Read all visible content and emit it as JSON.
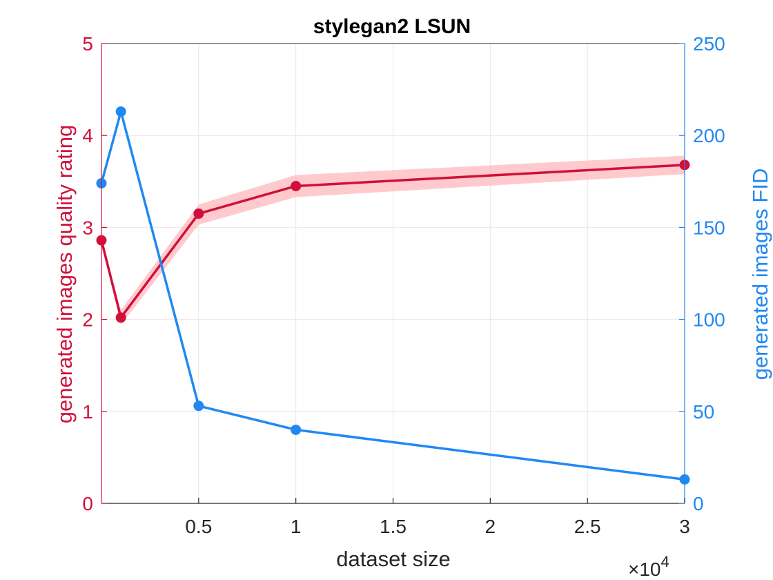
{
  "chart_data": {
    "type": "line",
    "title": "stylegan2 LSUN",
    "xlabel": "dataset size",
    "x_exponent_label": "×10",
    "x_exponent_power": "4",
    "xlim": [
      0,
      3
    ],
    "x_ticks": [
      0.5,
      1,
      1.5,
      2,
      2.5,
      3
    ],
    "x_tick_labels": [
      "0.5",
      "1",
      "1.5",
      "2",
      "2.5",
      "3"
    ],
    "left_axis": {
      "label": "generated images quality rating",
      "ylim": [
        0,
        5
      ],
      "ticks": [
        0,
        1,
        2,
        3,
        4,
        5
      ],
      "tick_labels": [
        "0",
        "1",
        "2",
        "3",
        "4",
        "5"
      ],
      "color": "#d0103a",
      "band_color": "#ffb3b8"
    },
    "right_axis": {
      "label": "generated images FID",
      "ylim": [
        0,
        250
      ],
      "ticks": [
        0,
        50,
        100,
        150,
        200,
        250
      ],
      "tick_labels": [
        "0",
        "50",
        "100",
        "150",
        "200",
        "250"
      ],
      "color": "#2188f2"
    },
    "series": [
      {
        "axis": "left",
        "x": [
          0,
          0.1,
          0.5,
          1,
          3
        ],
        "values": [
          2.86,
          2.02,
          3.15,
          3.45,
          3.68
        ],
        "band_lower": [
          2.86,
          1.94,
          3.03,
          3.33,
          3.58
        ],
        "band_upper": [
          2.86,
          2.1,
          3.25,
          3.57,
          3.78
        ]
      },
      {
        "axis": "right",
        "x": [
          0,
          0.1,
          0.5,
          1,
          3
        ],
        "values": [
          174,
          213,
          53,
          40,
          13
        ]
      }
    ],
    "grid": true
  }
}
